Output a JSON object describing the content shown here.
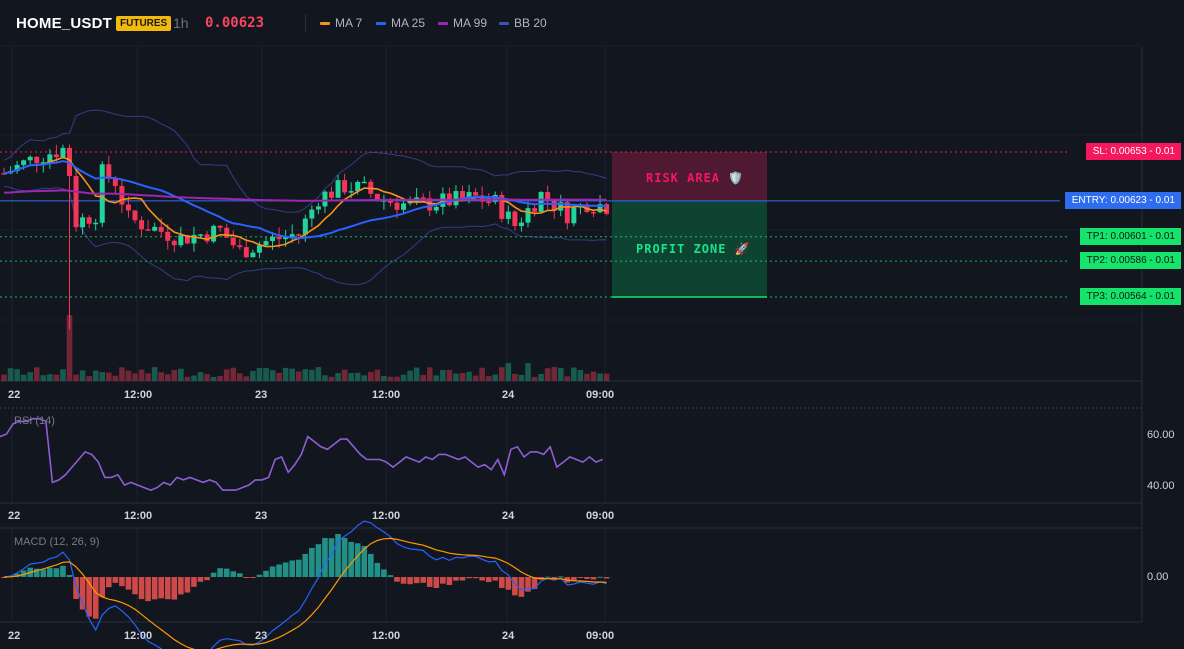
{
  "header": {
    "symbol": "HOME_USDT",
    "badge": "FUTURES",
    "timeframe": "1h",
    "price": "0.00623",
    "legend": [
      {
        "label": "MA 7",
        "color": "#f7931a"
      },
      {
        "label": "MA 25",
        "color": "#2962ff"
      },
      {
        "label": "MA 99",
        "color": "#9c27b0"
      },
      {
        "label": "BB 20",
        "color": "#3f51b5"
      }
    ]
  },
  "colors": {
    "up": "#22d39a",
    "down": "#f23657",
    "sl": "#f5175f",
    "entry": "#2f6df0",
    "tp": "#15e36c"
  },
  "levels": {
    "sl": {
      "text": "SL: 0.00653",
      "qty": "0.01",
      "price": 0.00653
    },
    "entry": {
      "text": "ENTRY: 0.00623",
      "qty": "0.01",
      "price": 0.00623
    },
    "tp1": {
      "text": "TP1: 0.00601",
      "qty": "0.01",
      "price": 0.00601
    },
    "tp2": {
      "text": "TP2: 0.00586",
      "qty": "0.01",
      "price": 0.00586
    },
    "tp3": {
      "text": "TP3: 0.00564",
      "qty": "0.01",
      "price": 0.00564
    }
  },
  "zones": {
    "risk": "RISK AREA 🛡️",
    "profit": "PROFIT ZONE 🚀"
  },
  "x_axis": [
    "22",
    "12:00",
    "23",
    "12:00",
    "24",
    "09:00"
  ],
  "rsi": {
    "title": "RSI (14)",
    "ticks": [
      "60.00",
      "40.00"
    ],
    "values": [
      59,
      60,
      64,
      65,
      65,
      66,
      66,
      65,
      41,
      42,
      44,
      47,
      50,
      53,
      52,
      49,
      43,
      43,
      44,
      40,
      41,
      40,
      39,
      38,
      39,
      41,
      40,
      43,
      42,
      43,
      42,
      41,
      42,
      41,
      38,
      38,
      38,
      39,
      40,
      42,
      42,
      43,
      50,
      51,
      45,
      48,
      52,
      59,
      57,
      55,
      54,
      56,
      58,
      58,
      55,
      52,
      50,
      50,
      50,
      49,
      47,
      49,
      51,
      50,
      49,
      51,
      50,
      52,
      52,
      51,
      50,
      51,
      49,
      47,
      48,
      46,
      50,
      44,
      54,
      55,
      51,
      53,
      53,
      52,
      55,
      47,
      49,
      51,
      50,
      49,
      51,
      49,
      50
    ]
  },
  "macd": {
    "title": "MACD (12, 26, 9)",
    "ticks": [
      "0.00"
    ]
  }
}
